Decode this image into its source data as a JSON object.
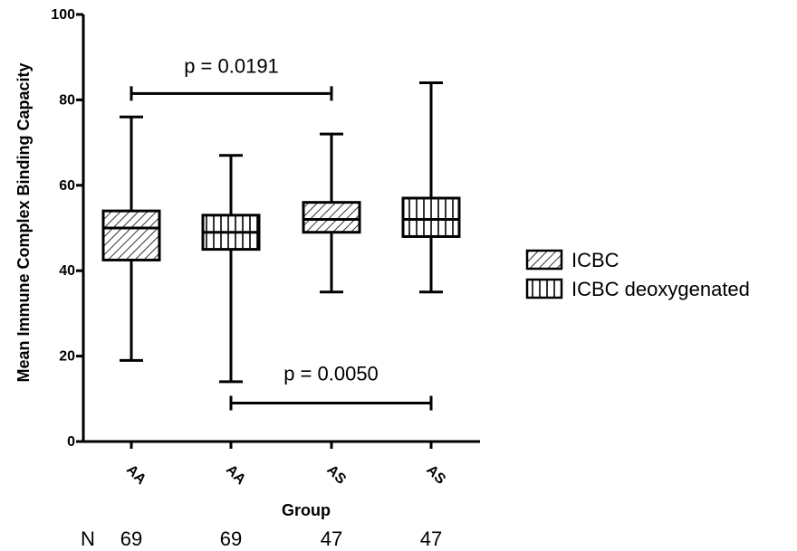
{
  "chart_data": {
    "type": "boxplot",
    "title": "",
    "xlabel": "Group",
    "ylabel": "Mean Immune Complex Binding Capacity",
    "ylim": [
      0,
      100
    ],
    "yticks": [
      "0",
      "20",
      "40",
      "60",
      "80",
      "100"
    ],
    "legend_position": "right",
    "categories": [
      "AA",
      "AA",
      "AS",
      "AS"
    ],
    "series": [
      {
        "name": "ICBC",
        "pattern": "diagonal-hatch",
        "boxes": [
          {
            "category_index": 0,
            "min": 19,
            "q1": 42.5,
            "median": 50,
            "q3": 54,
            "max": 76
          },
          {
            "category_index": 2,
            "min": 35,
            "q1": 49,
            "median": 52,
            "q3": 56,
            "max": 72
          }
        ]
      },
      {
        "name": "ICBC deoxygenated",
        "pattern": "vertical-hatch",
        "boxes": [
          {
            "category_index": 1,
            "min": 14,
            "q1": 45,
            "median": 49,
            "q3": 53,
            "max": 67
          },
          {
            "category_index": 3,
            "min": 35,
            "q1": 48,
            "median": 52,
            "q3": 57,
            "max": 84
          }
        ]
      }
    ],
    "annotations": [
      {
        "text": "p = 0.0191",
        "from_index": 0,
        "to_index": 2,
        "y": 81.5
      },
      {
        "text": "p = 0.0050",
        "from_index": 1,
        "to_index": 3,
        "y": 9
      }
    ],
    "n_label": "N",
    "n_values": [
      "69",
      "69",
      "47",
      "47"
    ]
  }
}
